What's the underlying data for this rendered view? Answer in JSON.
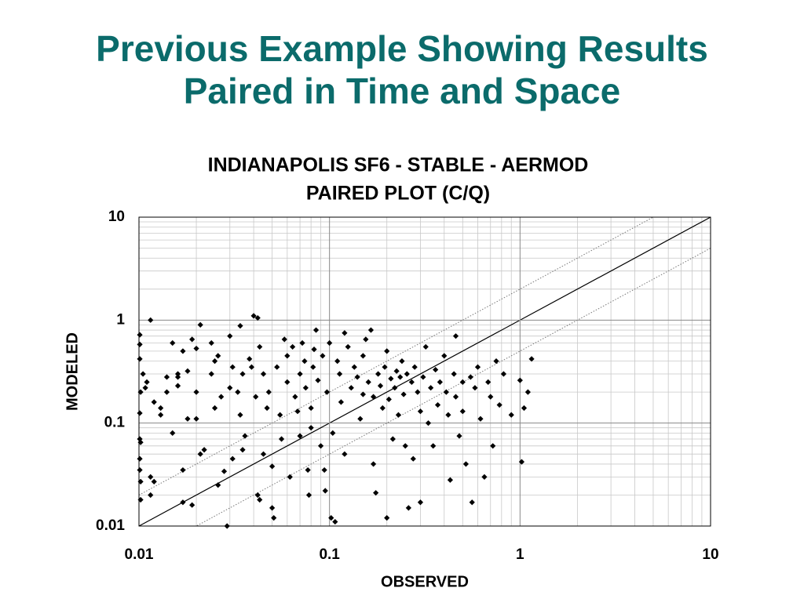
{
  "slide_title": [
    "Previous Example Showing Results",
    "Paired in Time and Space"
  ],
  "chart_data": {
    "type": "scatter",
    "title": [
      "INDIANAPOLIS SF6 - STABLE - AERMOD",
      "PAIRED PLOT (C/Q)"
    ],
    "x_label": "OBSERVED",
    "y_label": "MODELED",
    "log_x": true,
    "log_y": true,
    "xlim": [
      0.01,
      10
    ],
    "ylim": [
      0.01,
      10
    ],
    "xticks": [
      0.01,
      0.1,
      1,
      10
    ],
    "yticks": [
      0.01,
      0.1,
      1,
      10
    ],
    "grid": true,
    "minor_grid": true,
    "identity_line": true,
    "factor_lines": [
      2,
      0.5
    ],
    "color": "#000000",
    "x": [
      0.0101,
      0.0101,
      0.0101,
      0.0102,
      0.0101,
      0.0101,
      0.0102,
      0.0101,
      0.0101,
      0.0102,
      0.0102,
      0.0105,
      0.0108,
      0.011,
      0.0115,
      0.0115,
      0.0115,
      0.012,
      0.012,
      0.013,
      0.013,
      0.014,
      0.014,
      0.015,
      0.015,
      0.016,
      0.016,
      0.016,
      0.017,
      0.017,
      0.017,
      0.018,
      0.018,
      0.019,
      0.019,
      0.02,
      0.02,
      0.02,
      0.021,
      0.021,
      0.022,
      0.024,
      0.024,
      0.025,
      0.025,
      0.026,
      0.026,
      0.027,
      0.028,
      0.029,
      0.03,
      0.03,
      0.031,
      0.031,
      0.033,
      0.034,
      0.034,
      0.035,
      0.035,
      0.036,
      0.038,
      0.039,
      0.04,
      0.041,
      0.042,
      0.042,
      0.043,
      0.043,
      0.045,
      0.045,
      0.047,
      0.048,
      0.05,
      0.05,
      0.051,
      0.053,
      0.055,
      0.056,
      0.058,
      0.06,
      0.06,
      0.062,
      0.064,
      0.066,
      0.068,
      0.07,
      0.07,
      0.072,
      0.074,
      0.075,
      0.077,
      0.078,
      0.08,
      0.08,
      0.082,
      0.083,
      0.085,
      0.087,
      0.09,
      0.092,
      0.094,
      0.095,
      0.097,
      0.1,
      0.102,
      0.104,
      0.107,
      0.11,
      0.113,
      0.115,
      0.12,
      0.12,
      0.125,
      0.13,
      0.135,
      0.14,
      0.145,
      0.15,
      0.15,
      0.155,
      0.16,
      0.165,
      0.17,
      0.17,
      0.175,
      0.18,
      0.185,
      0.19,
      0.195,
      0.2,
      0.2,
      0.205,
      0.21,
      0.215,
      0.22,
      0.225,
      0.23,
      0.235,
      0.24,
      0.245,
      0.25,
      0.255,
      0.26,
      0.27,
      0.275,
      0.28,
      0.29,
      0.3,
      0.3,
      0.31,
      0.32,
      0.33,
      0.34,
      0.35,
      0.36,
      0.37,
      0.38,
      0.4,
      0.41,
      0.42,
      0.43,
      0.45,
      0.46,
      0.48,
      0.5,
      0.5,
      0.52,
      0.55,
      0.56,
      0.58,
      0.6,
      0.62,
      0.65,
      0.68,
      0.7,
      0.72,
      0.75,
      0.78,
      0.82,
      0.9,
      1.0,
      1.02,
      1.05,
      1.1,
      1.15,
      0.46
    ],
    "values": [
      0.72,
      0.58,
      0.42,
      0.2,
      0.125,
      0.07,
      0.065,
      0.045,
      0.035,
      0.018,
      0.027,
      0.3,
      0.22,
      0.25,
      1.0,
      0.02,
      0.03,
      0.16,
      0.027,
      0.14,
      0.12,
      0.2,
      0.28,
      0.6,
      0.08,
      0.3,
      0.28,
      0.23,
      0.5,
      0.035,
      0.017,
      0.32,
      0.11,
      0.65,
      0.016,
      0.53,
      0.2,
      0.11,
      0.9,
      0.05,
      0.055,
      0.6,
      0.3,
      0.4,
      0.14,
      0.45,
      0.025,
      0.18,
      0.034,
      0.01,
      0.7,
      0.22,
      0.35,
      0.045,
      0.2,
      0.88,
      0.12,
      0.055,
      0.3,
      0.075,
      0.42,
      0.35,
      1.1,
      0.18,
      1.05,
      0.02,
      0.018,
      0.55,
      0.05,
      0.3,
      0.14,
      0.2,
      0.038,
      0.015,
      0.012,
      0.35,
      0.12,
      0.07,
      0.65,
      0.45,
      0.25,
      0.03,
      0.55,
      0.18,
      0.13,
      0.075,
      0.3,
      0.6,
      0.4,
      0.22,
      0.035,
      0.02,
      0.14,
      0.09,
      0.35,
      0.52,
      0.8,
      0.26,
      0.06,
      0.45,
      0.035,
      0.022,
      0.2,
      0.6,
      0.012,
      0.08,
      0.011,
      0.4,
      0.3,
      0.16,
      0.75,
      0.05,
      0.55,
      0.22,
      0.35,
      0.28,
      0.11,
      0.45,
      0.19,
      0.65,
      0.25,
      0.8,
      0.18,
      0.04,
      0.021,
      0.3,
      0.23,
      0.14,
      0.35,
      0.5,
      0.012,
      0.17,
      0.27,
      0.07,
      0.22,
      0.32,
      0.12,
      0.28,
      0.4,
      0.19,
      0.06,
      0.3,
      0.015,
      0.25,
      0.045,
      0.35,
      0.2,
      0.017,
      0.13,
      0.28,
      0.55,
      0.1,
      0.22,
      0.06,
      0.33,
      0.15,
      0.25,
      0.45,
      0.2,
      0.12,
      0.028,
      0.3,
      0.18,
      0.075,
      0.25,
      0.13,
      0.04,
      0.28,
      0.017,
      0.22,
      0.35,
      0.11,
      0.03,
      0.25,
      0.18,
      0.06,
      0.4,
      0.15,
      0.3,
      0.12,
      0.26,
      0.042,
      0.14,
      0.2,
      0.42,
      0.7
    ]
  }
}
